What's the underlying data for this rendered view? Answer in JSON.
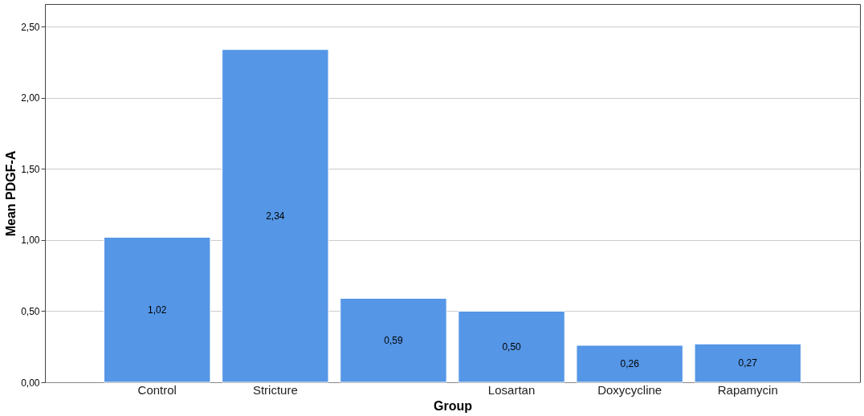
{
  "chart_data": {
    "type": "bar",
    "xlabel": "Group",
    "ylabel": "Mean PDGF-A",
    "categories": [
      "Control",
      "Stricture",
      null,
      "Losartan",
      "Doxycycline",
      "Rapamycin"
    ],
    "values": [
      1.02,
      2.34,
      0.59,
      0.5,
      0.26,
      0.27
    ],
    "value_labels": [
      "1,02",
      "2,34",
      "0,59",
      "0,50",
      "0,26",
      "0,27"
    ],
    "color": "#5596e6",
    "ylim": [
      0,
      2.66
    ],
    "yticks": [
      {
        "value": 0,
        "label": "0,00"
      },
      {
        "value": 0.5,
        "label": "0,50"
      },
      {
        "value": 1,
        "label": "1,00"
      },
      {
        "value": 1.5,
        "label": "1,50"
      },
      {
        "value": 2,
        "label": "2,00"
      },
      {
        "value": 2.5,
        "label": "2,50"
      }
    ],
    "grid": "y"
  }
}
